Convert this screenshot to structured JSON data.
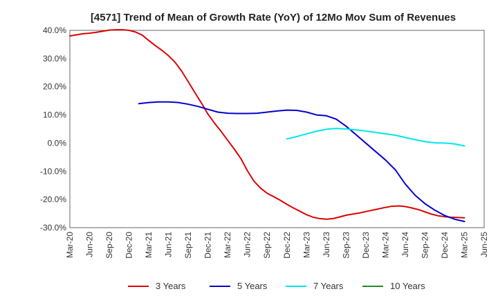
{
  "chart_data": {
    "type": "line",
    "title": "[4571]  Trend of Mean of Growth Rate (YoY) of 12Mo Mov Sum of Revenues",
    "xlabel": "",
    "ylabel": "",
    "ylim": [
      -30,
      40
    ],
    "yticks": [
      40,
      30,
      20,
      10,
      0,
      -10,
      -20,
      -30
    ],
    "ytick_labels": [
      "40.0%",
      "30.0%",
      "20.0%",
      "10.0%",
      "0.0%",
      "-10.0%",
      "-20.0%",
      "-30.0%"
    ],
    "categories": [
      "Mar-20",
      "Jun-20",
      "Sep-20",
      "Dec-20",
      "Mar-21",
      "Jun-21",
      "Sep-21",
      "Dec-21",
      "Mar-22",
      "Jun-22",
      "Sep-22",
      "Dec-22",
      "Mar-23",
      "Jun-23",
      "Sep-23",
      "Dec-23",
      "Mar-24",
      "Jun-24",
      "Sep-24",
      "Dec-24",
      "Mar-25",
      "Jun-25"
    ],
    "grid": true,
    "legend_position": "bottom",
    "series": [
      {
        "name": "3 Years",
        "color": "#dd0000",
        "x": [
          0,
          0.33,
          0.67,
          1,
          1.33,
          1.67,
          2,
          2.33,
          2.67,
          3,
          3.33,
          3.67,
          4,
          4.33,
          4.67,
          5,
          5.33,
          5.67,
          6,
          6.33,
          6.67,
          7,
          7.33,
          7.67,
          8,
          8.33,
          8.67,
          9,
          9.33,
          9.67,
          10,
          10.33,
          10.67,
          11,
          11.33,
          11.67,
          12,
          12.33,
          12.67,
          13,
          13.33,
          13.67,
          14,
          14.33,
          14.67,
          15,
          15.33,
          15.67,
          16,
          16.33,
          16.67,
          17,
          17.33,
          17.67,
          18,
          18.33,
          18.67,
          19,
          19.33,
          19.67,
          20
        ],
        "values": [
          38,
          38.4,
          38.8,
          39,
          39.3,
          39.7,
          40.1,
          40.2,
          40.2,
          40,
          39.4,
          38.3,
          36.4,
          34.6,
          32.9,
          31,
          28.7,
          25.5,
          21.8,
          18,
          14.2,
          10.3,
          7.1,
          4.1,
          1,
          -2.1,
          -5.5,
          -9.8,
          -13.5,
          -16,
          -17.8,
          -19,
          -20.3,
          -21.7,
          -23,
          -24.2,
          -25.4,
          -26.3,
          -26.8,
          -27,
          -26.8,
          -26.2,
          -25.6,
          -25.2,
          -24.8,
          -24.3,
          -23.8,
          -23.3,
          -22.8,
          -22.4,
          -22.3,
          -22.5,
          -23,
          -23.6,
          -24.4,
          -25.2,
          -25.8,
          -26.1,
          -26.3,
          -26.4,
          -26.5
        ]
      },
      {
        "name": "5 Years",
        "color": "#0000cc",
        "x": [
          3.5,
          4,
          4.5,
          5,
          5.5,
          6,
          6.5,
          7,
          7.5,
          8,
          8.5,
          9,
          9.5,
          10,
          10.5,
          11,
          11.5,
          12,
          12.5,
          13,
          13.5,
          14,
          14.5,
          15,
          15.5,
          16,
          16.5,
          17,
          17.5,
          18,
          18.5,
          19,
          19.5,
          20
        ],
        "values": [
          14,
          14.4,
          14.6,
          14.6,
          14.4,
          13.8,
          13,
          12,
          11,
          10.6,
          10.5,
          10.5,
          10.6,
          11,
          11.4,
          11.7,
          11.6,
          11,
          10,
          9.7,
          8.5,
          6,
          3,
          0,
          -3,
          -6,
          -9.5,
          -14.5,
          -18.5,
          -21.5,
          -23.8,
          -25.7,
          -27,
          -27.8
        ]
      },
      {
        "name": "7 Years",
        "color": "#00e5ee",
        "x": [
          11,
          11.5,
          12,
          12.5,
          13,
          13.5,
          14,
          14.5,
          15,
          15.5,
          16,
          16.5,
          17,
          17.5,
          18,
          18.5,
          19,
          19.5,
          20
        ],
        "values": [
          1.5,
          2.3,
          3.3,
          4.2,
          4.9,
          5.2,
          5,
          4.7,
          4.3,
          3.8,
          3.3,
          2.8,
          2,
          1.2,
          0.5,
          0.1,
          0,
          -0.3,
          -1
        ]
      },
      {
        "name": "10 Years",
        "color": "#228b22",
        "x": [],
        "values": []
      }
    ]
  }
}
